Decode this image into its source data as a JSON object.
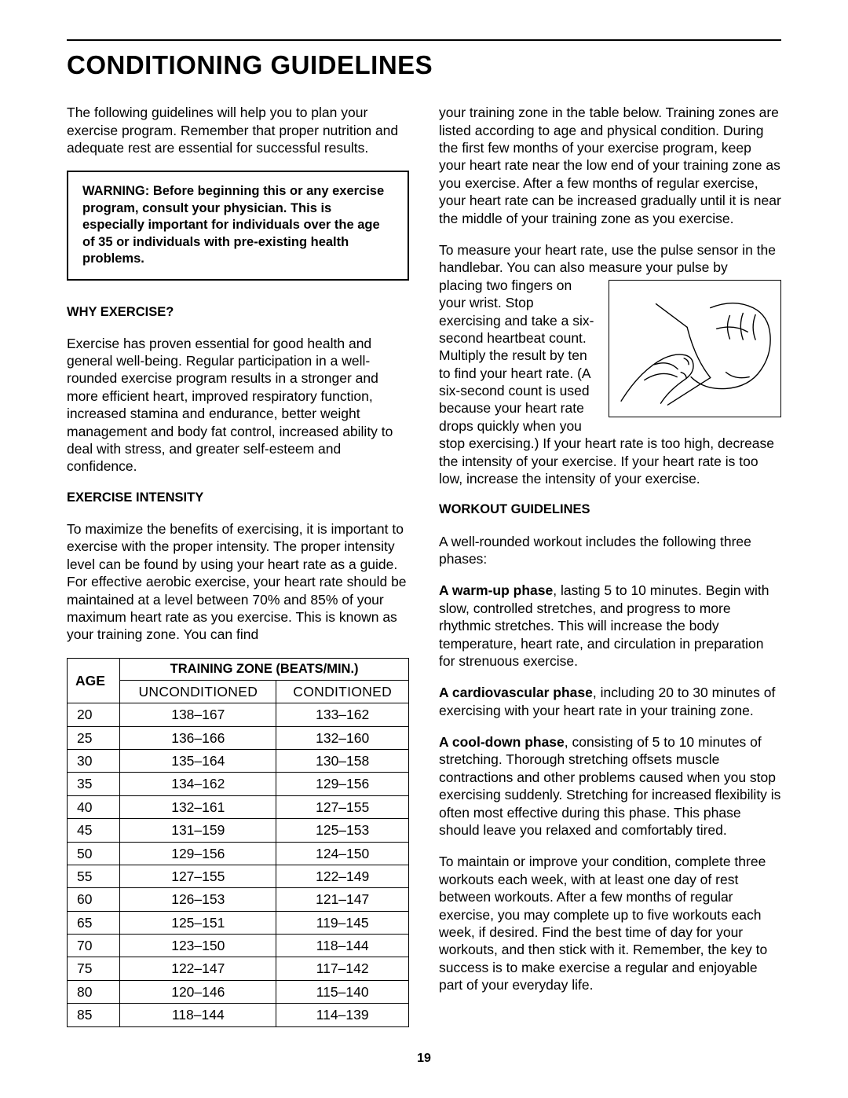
{
  "page_number": "19",
  "title": "CONDITIONING GUIDELINES",
  "intro": "The following guidelines will help you to plan your exercise program. Remember that proper nutrition and adequate rest are essential for successful results.",
  "warning": "WARNING: Before beginning this or any exercise program, consult your physician. This is especially important for individuals over the age of 35 or individuals with pre-existing health problems.",
  "why_head": "WHY EXERCISE?",
  "why_body": "Exercise has proven essential for good health and general well-being. Regular participation in a well-rounded exercise program results in a stronger and more efficient heart, improved respiratory function, increased stamina and endurance, better weight management and body fat control, increased ability to deal with stress, and greater self-esteem and confidence.",
  "intensity_head": "EXERCISE INTENSITY",
  "intensity_body": "To maximize the benefits of exercising, it is important to exercise with the proper intensity. The proper intensity level can be found by using your heart rate as a guide. For effective aerobic exercise, your heart rate should be maintained at a level between 70% and 85% of your maximum heart rate as you exercise. This is known as your training zone. You can find",
  "table": {
    "title": "TRAINING ZONE (BEATS/MIN.)",
    "age_head": "AGE",
    "col1": "UNCONDITIONED",
    "col2": "CONDITIONED",
    "rows": [
      {
        "age": "20",
        "u": "138–167",
        "c": "133–162"
      },
      {
        "age": "25",
        "u": "136–166",
        "c": "132–160"
      },
      {
        "age": "30",
        "u": "135–164",
        "c": "130–158"
      },
      {
        "age": "35",
        "u": "134–162",
        "c": "129–156"
      },
      {
        "age": "40",
        "u": "132–161",
        "c": "127–155"
      },
      {
        "age": "45",
        "u": "131–159",
        "c": "125–153"
      },
      {
        "age": "50",
        "u": "129–156",
        "c": "124–150"
      },
      {
        "age": "55",
        "u": "127–155",
        "c": "122–149"
      },
      {
        "age": "60",
        "u": "126–153",
        "c": "121–147"
      },
      {
        "age": "65",
        "u": "125–151",
        "c": "119–145"
      },
      {
        "age": "70",
        "u": "123–150",
        "c": "118–144"
      },
      {
        "age": "75",
        "u": "122–147",
        "c": "117–142"
      },
      {
        "age": "80",
        "u": "120–146",
        "c": "115–140"
      },
      {
        "age": "85",
        "u": "118–144",
        "c": "114–139"
      }
    ]
  },
  "tz_cont": "your training zone in the table below. Training zones are listed according to age and physical condition. During the first few months of your exercise program, keep your heart rate near the low end of your training zone as you exercise. After a few months of regular exercise, your heart rate can be increased gradually until it is near the middle of your training zone as you exercise.",
  "measure_lead": "To measure your heart rate, use the pulse sensor in the handlebar. You can also measure your pulse by ",
  "measure_wrap": "placing two fingers on your wrist. Stop exercising and take a six-second heartbeat count. Multiply the result by ten to find your heart rate. (A six-second count is used because your heart rate",
  "measure_tail": " drops quickly when you stop exercising.) If your heart rate is too high, decrease the intensity of your exercise. If your heart rate is too low, increase the intensity of your exercise.",
  "workout_head": "WORKOUT GUIDELINES",
  "workout_intro": "A well-rounded workout includes the following three phases:",
  "warmup_b": "A warm-up phase",
  "warmup_t": ", lasting 5 to 10 minutes. Begin with slow, controlled stretches, and progress to more rhythmic stretches. This will increase the body temperature, heart rate, and circulation in preparation for strenuous exercise.",
  "cardio_b": "A cardiovascular phase",
  "cardio_t": ", including 20 to 30 minutes of exercising with your heart rate in your training zone.",
  "cool_b": "A cool-down phase",
  "cool_t": ", consisting of 5 to 10 minutes of stretching. Thorough stretching offsets muscle contractions and other problems caused when you stop exercising suddenly. Stretching for increased flexibility is often most effective during this phase. This phase should leave you relaxed and comfortably tired.",
  "maintain": "To maintain or improve your condition, complete three workouts each week, with at least one day of rest between workouts. After a few months of regular exercise, you may complete up to five workouts each week, if desired. Find the best time of day for your workouts, and then stick with it. Remember, the key to success is to make exercise a regular and enjoyable part of your everyday life."
}
